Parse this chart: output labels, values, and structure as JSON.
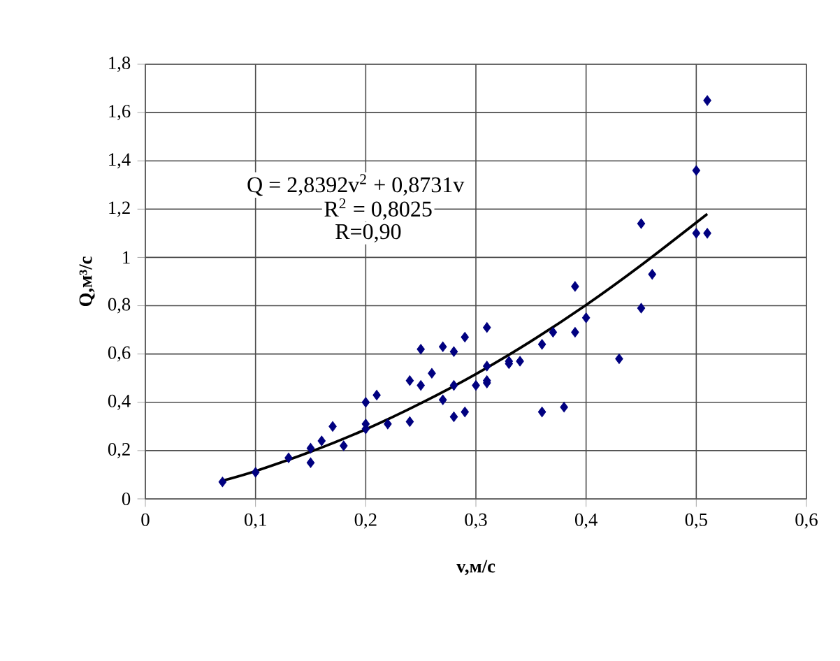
{
  "chart_data": {
    "type": "scatter",
    "xlabel": "v,м/с",
    "ylabel": "Q,м³/с",
    "annotations": [
      "Q = 2,8392v$^{2}$ + 0,8731v",
      "R$^{2}$ = 0,8025",
      "R=0,90"
    ],
    "xlim": [
      0,
      0.6
    ],
    "ylim": [
      0,
      1.8
    ],
    "xticks": [
      0,
      {
        "value": 0.1,
        "label": "0,1"
      },
      {
        "value": 0.2,
        "label": "0,2"
      },
      {
        "value": 0.3,
        "label": "0,3"
      },
      {
        "value": 0.4,
        "label": "0,4"
      },
      {
        "value": 0.5,
        "label": "0,5"
      },
      {
        "value": 0.6,
        "label": "0,6"
      }
    ],
    "yticks": [
      0,
      {
        "value": 0.2,
        "label": "0,2"
      },
      {
        "value": 0.4,
        "label": "0,4"
      },
      {
        "value": 0.6,
        "label": "0,6"
      },
      {
        "value": 0.8,
        "label": "0,8"
      },
      1,
      {
        "value": 1.2,
        "label": "1,2"
      },
      {
        "value": 1.4,
        "label": "1,4"
      },
      {
        "value": 1.6,
        "label": "1,6"
      },
      {
        "value": 1.8,
        "label": "1,8"
      }
    ],
    "grid": true,
    "marker": "diamond",
    "series": [
      {
        "color": "#000080",
        "x": [
          0.07,
          0.1,
          0.13,
          0.15,
          0.15,
          0.16,
          0.17,
          0.18,
          0.2,
          0.2,
          0.2,
          0.21,
          0.22,
          0.24,
          0.24,
          0.25,
          0.25,
          0.26,
          0.27,
          0.27,
          0.28,
          0.28,
          0.28,
          0.29,
          0.29,
          0.3,
          0.31,
          0.31,
          0.31,
          0.31,
          0.33,
          0.33,
          0.34,
          0.36,
          0.36,
          0.37,
          0.38,
          0.39,
          0.39,
          0.4,
          0.43,
          0.45,
          0.45,
          0.46,
          0.5,
          0.5,
          0.51,
          0.51
        ],
        "values": [
          0.07,
          0.11,
          0.17,
          0.15,
          0.21,
          0.24,
          0.3,
          0.22,
          0.29,
          0.31,
          0.4,
          0.43,
          0.31,
          0.32,
          0.49,
          0.62,
          0.47,
          0.52,
          0.63,
          0.41,
          0.61,
          0.47,
          0.34,
          0.67,
          0.36,
          0.47,
          0.71,
          0.55,
          0.49,
          0.48,
          0.57,
          0.56,
          0.57,
          0.64,
          0.36,
          0.69,
          0.38,
          0.88,
          0.69,
          0.75,
          0.58,
          1.14,
          0.79,
          0.93,
          1.36,
          1.1,
          1.65,
          1.1
        ]
      },
      {
        "type": "line",
        "color": "#000000",
        "marker": "none",
        "x": [
          0.07,
          0.1,
          0.15,
          0.2,
          0.25,
          0.3,
          0.35,
          0.4,
          0.45,
          0.51
        ],
        "values": [
          0.075,
          0.115,
          0.195,
          0.288,
          0.396,
          0.517,
          0.653,
          0.803,
          0.968,
          1.18
        ]
      }
    ]
  }
}
